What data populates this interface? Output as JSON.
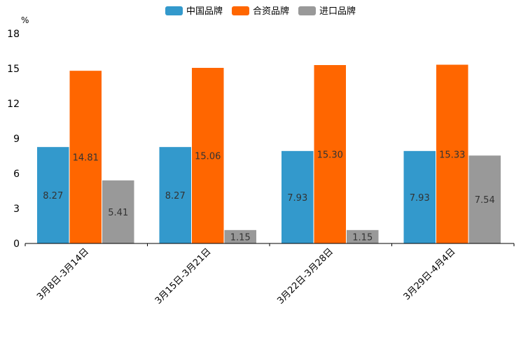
{
  "chart_data": {
    "type": "bar",
    "unit": "%",
    "categories": [
      "3月8日-3月14日",
      "3月15日-3月21日",
      "3月22日-3月28日",
      "3月29日-4月4日"
    ],
    "series": [
      {
        "name": "中国品牌",
        "color": "#3399cc",
        "values": [
          8.27,
          8.27,
          7.93,
          7.93
        ]
      },
      {
        "name": "合资品牌",
        "color": "#ff6600",
        "values": [
          14.81,
          15.06,
          15.3,
          15.33
        ]
      },
      {
        "name": "进口品牌",
        "color": "#999999",
        "values": [
          5.41,
          1.15,
          1.15,
          7.54
        ]
      }
    ],
    "value_labels": [
      [
        "8.27",
        "8.27",
        "7.93",
        "7.93"
      ],
      [
        "14.81",
        "15.06",
        "15.30",
        "15.33"
      ],
      [
        "5.41",
        "1.15",
        "1.15",
        "7.54"
      ]
    ],
    "yticks": [
      "0",
      "3",
      "6",
      "9",
      "12",
      "15",
      "18"
    ],
    "ylim": [
      0,
      18
    ],
    "legend_position": "top-center",
    "grid": false
  }
}
